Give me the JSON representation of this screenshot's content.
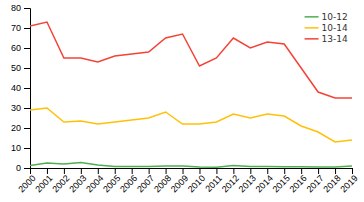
{
  "chart_data": {
    "type": "line",
    "x": [
      2000,
      2001,
      2002,
      2003,
      2004,
      2005,
      2006,
      2007,
      2008,
      2009,
      2010,
      2011,
      2012,
      2013,
      2014,
      2015,
      2016,
      2017,
      2018,
      2019
    ],
    "series": [
      {
        "name": "10-12",
        "color": "#4CAF50",
        "values": [
          1.2,
          2.5,
          2.0,
          2.8,
          1.5,
          0.8,
          0.8,
          0.8,
          1.0,
          1.0,
          0.5,
          0.4,
          1.2,
          0.8,
          0.8,
          0.6,
          0.6,
          0.5,
          0.5,
          1.0
        ]
      },
      {
        "name": "10-14",
        "color": "#FFC107",
        "values": [
          29,
          30,
          23,
          23.5,
          22,
          23,
          24,
          25,
          28,
          22,
          22,
          23,
          27,
          25,
          27,
          26,
          21,
          18,
          13,
          14
        ]
      },
      {
        "name": "13-14",
        "color": "#F44336",
        "values": [
          71,
          73,
          55,
          55,
          53,
          56,
          57,
          58,
          65,
          67,
          51,
          55,
          65,
          60,
          63,
          62,
          50,
          38,
          35,
          35
        ]
      }
    ],
    "xlim": [
      2000,
      2019
    ],
    "xticks": [
      2000,
      2001,
      2002,
      2003,
      2004,
      2005,
      2006,
      2007,
      2008,
      2009,
      2010,
      2011,
      2012,
      2013,
      2014,
      2015,
      2016,
      2017,
      2018,
      2019
    ],
    "ylim": [
      0,
      80
    ],
    "yticks": [
      0,
      10,
      20,
      30,
      40,
      50,
      60,
      70,
      80
    ],
    "grid": false,
    "legend": "upper right"
  }
}
